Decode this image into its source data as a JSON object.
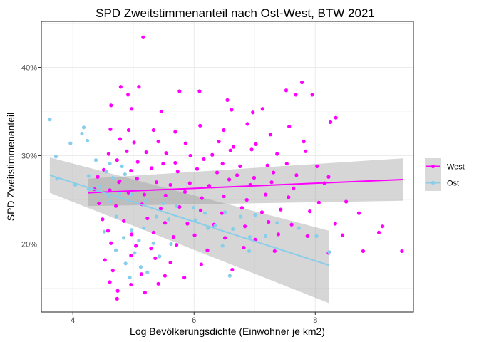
{
  "chart_data": {
    "type": "scatter",
    "title": "SPD Zweitstimmenanteil nach Ost-West, BTW 2021",
    "xlabel": "Log Bevölkerungsdichte (Einwohner je km2)",
    "ylabel": "SPD Zweitstimmenanteil",
    "xlim": [
      3.48,
      9.62
    ],
    "ylim": [
      12.3,
      45.2
    ],
    "x_ticks": [
      {
        "value": 4,
        "label": "4"
      },
      {
        "value": 6,
        "label": "6"
      },
      {
        "value": 8,
        "label": "8"
      }
    ],
    "y_ticks": [
      {
        "value": 20,
        "label": "20%"
      },
      {
        "value": 30,
        "label": "30%"
      },
      {
        "value": 40,
        "label": "40%"
      }
    ],
    "grid": true,
    "legend_position": "right",
    "series": [
      {
        "name": "West",
        "color": "#ff00ff",
        "trend": {
          "x": [
            4.25,
            9.45
          ],
          "y": [
            25.8,
            27.3
          ]
        },
        "ci_band": {
          "x": [
            4.25,
            9.45
          ],
          "lower": [
            24.3,
            24.9
          ],
          "upper": [
            27.4,
            29.7
          ]
        },
        "points": [
          [
            5.16,
            43.4
          ],
          [
            4.79,
            37.8
          ],
          [
            5.09,
            37.8
          ],
          [
            4.91,
            36.9
          ],
          [
            5.76,
            37.3
          ],
          [
            4.63,
            35.7
          ],
          [
            4.97,
            35.3
          ],
          [
            5.46,
            35.0
          ],
          [
            6.09,
            37.3
          ],
          [
            6.55,
            36.3
          ],
          [
            6.62,
            35.2
          ],
          [
            6.97,
            34.9
          ],
          [
            7.13,
            35.3
          ],
          [
            7.52,
            37.4
          ],
          [
            7.78,
            38.3
          ],
          [
            7.68,
            36.9
          ],
          [
            7.95,
            36.9
          ],
          [
            8.34,
            34.3
          ],
          [
            8.25,
            33.8
          ],
          [
            4.62,
            33.0
          ],
          [
            4.92,
            32.9
          ],
          [
            5.33,
            32.9
          ],
          [
            5.69,
            32.7
          ],
          [
            6.1,
            33.4
          ],
          [
            6.49,
            32.9
          ],
          [
            6.88,
            33.6
          ],
          [
            7.26,
            32.4
          ],
          [
            7.57,
            33.3
          ],
          [
            4.78,
            31.9
          ],
          [
            5.01,
            31.5
          ],
          [
            5.41,
            31.6
          ],
          [
            5.86,
            31.4
          ],
          [
            6.41,
            31.6
          ],
          [
            6.65,
            31.0
          ],
          [
            7.02,
            31.3
          ],
          [
            7.81,
            31.6
          ],
          [
            4.59,
            30.2
          ],
          [
            4.89,
            30.5
          ],
          [
            5.21,
            30.4
          ],
          [
            5.54,
            30.3
          ],
          [
            5.94,
            30.0
          ],
          [
            6.3,
            30.1
          ],
          [
            6.6,
            30.6
          ],
          [
            6.95,
            30.7
          ],
          [
            7.37,
            30.2
          ],
          [
            7.84,
            30.5
          ],
          [
            4.73,
            29.5
          ],
          [
            5.07,
            29.3
          ],
          [
            5.49,
            29.1
          ],
          [
            5.69,
            29.2
          ],
          [
            6.16,
            29.6
          ],
          [
            6.47,
            29.1
          ],
          [
            6.76,
            28.8
          ],
          [
            7.21,
            28.9
          ],
          [
            7.53,
            29.1
          ],
          [
            8.03,
            28.8
          ],
          [
            4.51,
            28.4
          ],
          [
            4.96,
            28.3
          ],
          [
            5.3,
            28.6
          ],
          [
            5.73,
            28.2
          ],
          [
            6.05,
            28.5
          ],
          [
            6.38,
            28.1
          ],
          [
            6.71,
            27.8
          ],
          [
            6.99,
            27.5
          ],
          [
            7.31,
            28.1
          ],
          [
            7.69,
            27.8
          ],
          [
            8.22,
            27.6
          ],
          [
            4.41,
            27.6
          ],
          [
            4.77,
            27.1
          ],
          [
            5.06,
            27.4
          ],
          [
            5.38,
            27.0
          ],
          [
            5.61,
            26.7
          ],
          [
            5.93,
            26.9
          ],
          [
            6.25,
            26.6
          ],
          [
            6.58,
            27.3
          ],
          [
            6.93,
            26.7
          ],
          [
            7.28,
            27.0
          ],
          [
            7.64,
            26.3
          ],
          [
            8.15,
            26.9
          ],
          [
            4.36,
            26.2
          ],
          [
            4.61,
            26.1
          ],
          [
            4.92,
            25.8
          ],
          [
            5.18,
            25.6
          ],
          [
            5.53,
            25.5
          ],
          [
            5.85,
            25.9
          ],
          [
            6.13,
            25.2
          ],
          [
            6.49,
            25.4
          ],
          [
            6.87,
            25.0
          ],
          [
            7.18,
            25.6
          ],
          [
            7.56,
            25.3
          ],
          [
            8.06,
            24.7
          ],
          [
            8.51,
            24.8
          ],
          [
            4.43,
            24.6
          ],
          [
            4.71,
            24.3
          ],
          [
            5.14,
            24.5
          ],
          [
            5.45,
            24.0
          ],
          [
            5.76,
            24.2
          ],
          [
            6.11,
            23.8
          ],
          [
            6.46,
            23.5
          ],
          [
            6.79,
            24.1
          ],
          [
            7.12,
            23.6
          ],
          [
            7.43,
            23.9
          ],
          [
            7.91,
            23.7
          ],
          [
            8.72,
            23.5
          ],
          [
            4.49,
            22.8
          ],
          [
            4.84,
            22.6
          ],
          [
            5.23,
            22.9
          ],
          [
            5.52,
            22.4
          ],
          [
            5.89,
            22.3
          ],
          [
            6.33,
            22.2
          ],
          [
            6.84,
            22.0
          ],
          [
            7.23,
            22.5
          ],
          [
            7.61,
            22.2
          ],
          [
            8.33,
            22.3
          ],
          [
            9.11,
            22.0
          ],
          [
            4.58,
            21.5
          ],
          [
            4.97,
            21.1
          ],
          [
            5.33,
            21.3
          ],
          [
            5.66,
            20.8
          ],
          [
            6.01,
            21.0
          ],
          [
            6.51,
            20.7
          ],
          [
            7.01,
            20.5
          ],
          [
            7.39,
            21.1
          ],
          [
            7.87,
            20.9
          ],
          [
            8.45,
            21.0
          ],
          [
            4.63,
            20.1
          ],
          [
            5.04,
            19.8
          ],
          [
            5.29,
            19.5
          ],
          [
            5.71,
            19.9
          ],
          [
            6.22,
            19.3
          ],
          [
            6.82,
            19.6
          ],
          [
            7.33,
            19.2
          ],
          [
            8.22,
            19.0
          ],
          [
            8.79,
            19.2
          ],
          [
            9.43,
            19.2
          ],
          [
            4.53,
            18.2
          ],
          [
            4.96,
            18.7
          ],
          [
            5.36,
            18.4
          ],
          [
            5.61,
            17.9
          ],
          [
            6.12,
            17.7
          ],
          [
            6.63,
            17.1
          ],
          [
            4.66,
            17.0
          ],
          [
            5.13,
            16.6
          ],
          [
            5.52,
            16.4
          ],
          [
            5.84,
            16.2
          ],
          [
            4.61,
            15.7
          ],
          [
            4.96,
            15.4
          ],
          [
            5.41,
            15.5
          ],
          [
            4.74,
            14.7
          ],
          [
            5.19,
            14.5
          ],
          [
            4.73,
            13.8
          ],
          [
            9.05,
            21.3
          ],
          [
            4.76,
            27.0
          ]
        ]
      },
      {
        "name": "Ost",
        "color": "#87ceeb",
        "trend": {
          "x": [
            3.62,
            8.23
          ],
          "y": [
            27.8,
            17.6
          ]
        },
        "ci_band": {
          "x": [
            3.62,
            8.23
          ],
          "lower": [
            25.8,
            13.3
          ],
          "upper": [
            29.8,
            21.5
          ]
        },
        "points": [
          [
            3.62,
            34.1
          ],
          [
            4.18,
            33.2
          ],
          [
            3.96,
            31.4
          ],
          [
            4.15,
            32.5
          ],
          [
            4.24,
            31.7
          ],
          [
            3.72,
            29.9
          ],
          [
            4.38,
            29.5
          ],
          [
            4.61,
            29.1
          ],
          [
            4.81,
            28.8
          ],
          [
            4.86,
            27.9
          ],
          [
            4.66,
            27.5
          ],
          [
            3.74,
            27.4
          ],
          [
            4.04,
            26.7
          ],
          [
            4.26,
            26.2
          ],
          [
            4.45,
            26.5
          ],
          [
            4.59,
            25.4
          ],
          [
            4.77,
            25.8
          ],
          [
            4.96,
            25.6
          ],
          [
            5.21,
            24.9
          ],
          [
            5.49,
            24.6
          ],
          [
            5.71,
            24.3
          ],
          [
            5.99,
            24.1
          ],
          [
            6.18,
            23.5
          ],
          [
            6.51,
            23.6
          ],
          [
            6.77,
            23.1
          ],
          [
            7.01,
            23.3
          ],
          [
            7.37,
            22.4
          ],
          [
            7.73,
            21.8
          ],
          [
            8.02,
            20.9
          ],
          [
            5.38,
            23.1
          ],
          [
            5.58,
            22.8
          ],
          [
            6.02,
            22.7
          ],
          [
            6.35,
            22.1
          ],
          [
            6.64,
            21.7
          ],
          [
            6.92,
            20.8
          ],
          [
            7.18,
            20.9
          ],
          [
            4.52,
            21.4
          ],
          [
            4.97,
            21.6
          ],
          [
            4.84,
            20.7
          ],
          [
            5.09,
            20.4
          ],
          [
            5.33,
            20.1
          ],
          [
            5.62,
            20.0
          ],
          [
            6.23,
            21.8
          ],
          [
            6.47,
            19.8
          ],
          [
            4.71,
            19.3
          ],
          [
            5.02,
            19.0
          ],
          [
            5.43,
            18.6
          ],
          [
            6.91,
            19.2
          ],
          [
            8.23,
            19.1
          ],
          [
            4.87,
            17.8
          ],
          [
            5.12,
            17.4
          ],
          [
            5.23,
            16.8
          ],
          [
            4.94,
            16.2
          ],
          [
            6.59,
            16.4
          ],
          [
            4.26,
            27.7
          ],
          [
            4.41,
            26.0
          ],
          [
            4.55,
            28.2
          ],
          [
            4.72,
            23.1
          ],
          [
            5.17,
            21.8
          ],
          [
            4.62,
            24.8
          ]
        ]
      }
    ]
  }
}
